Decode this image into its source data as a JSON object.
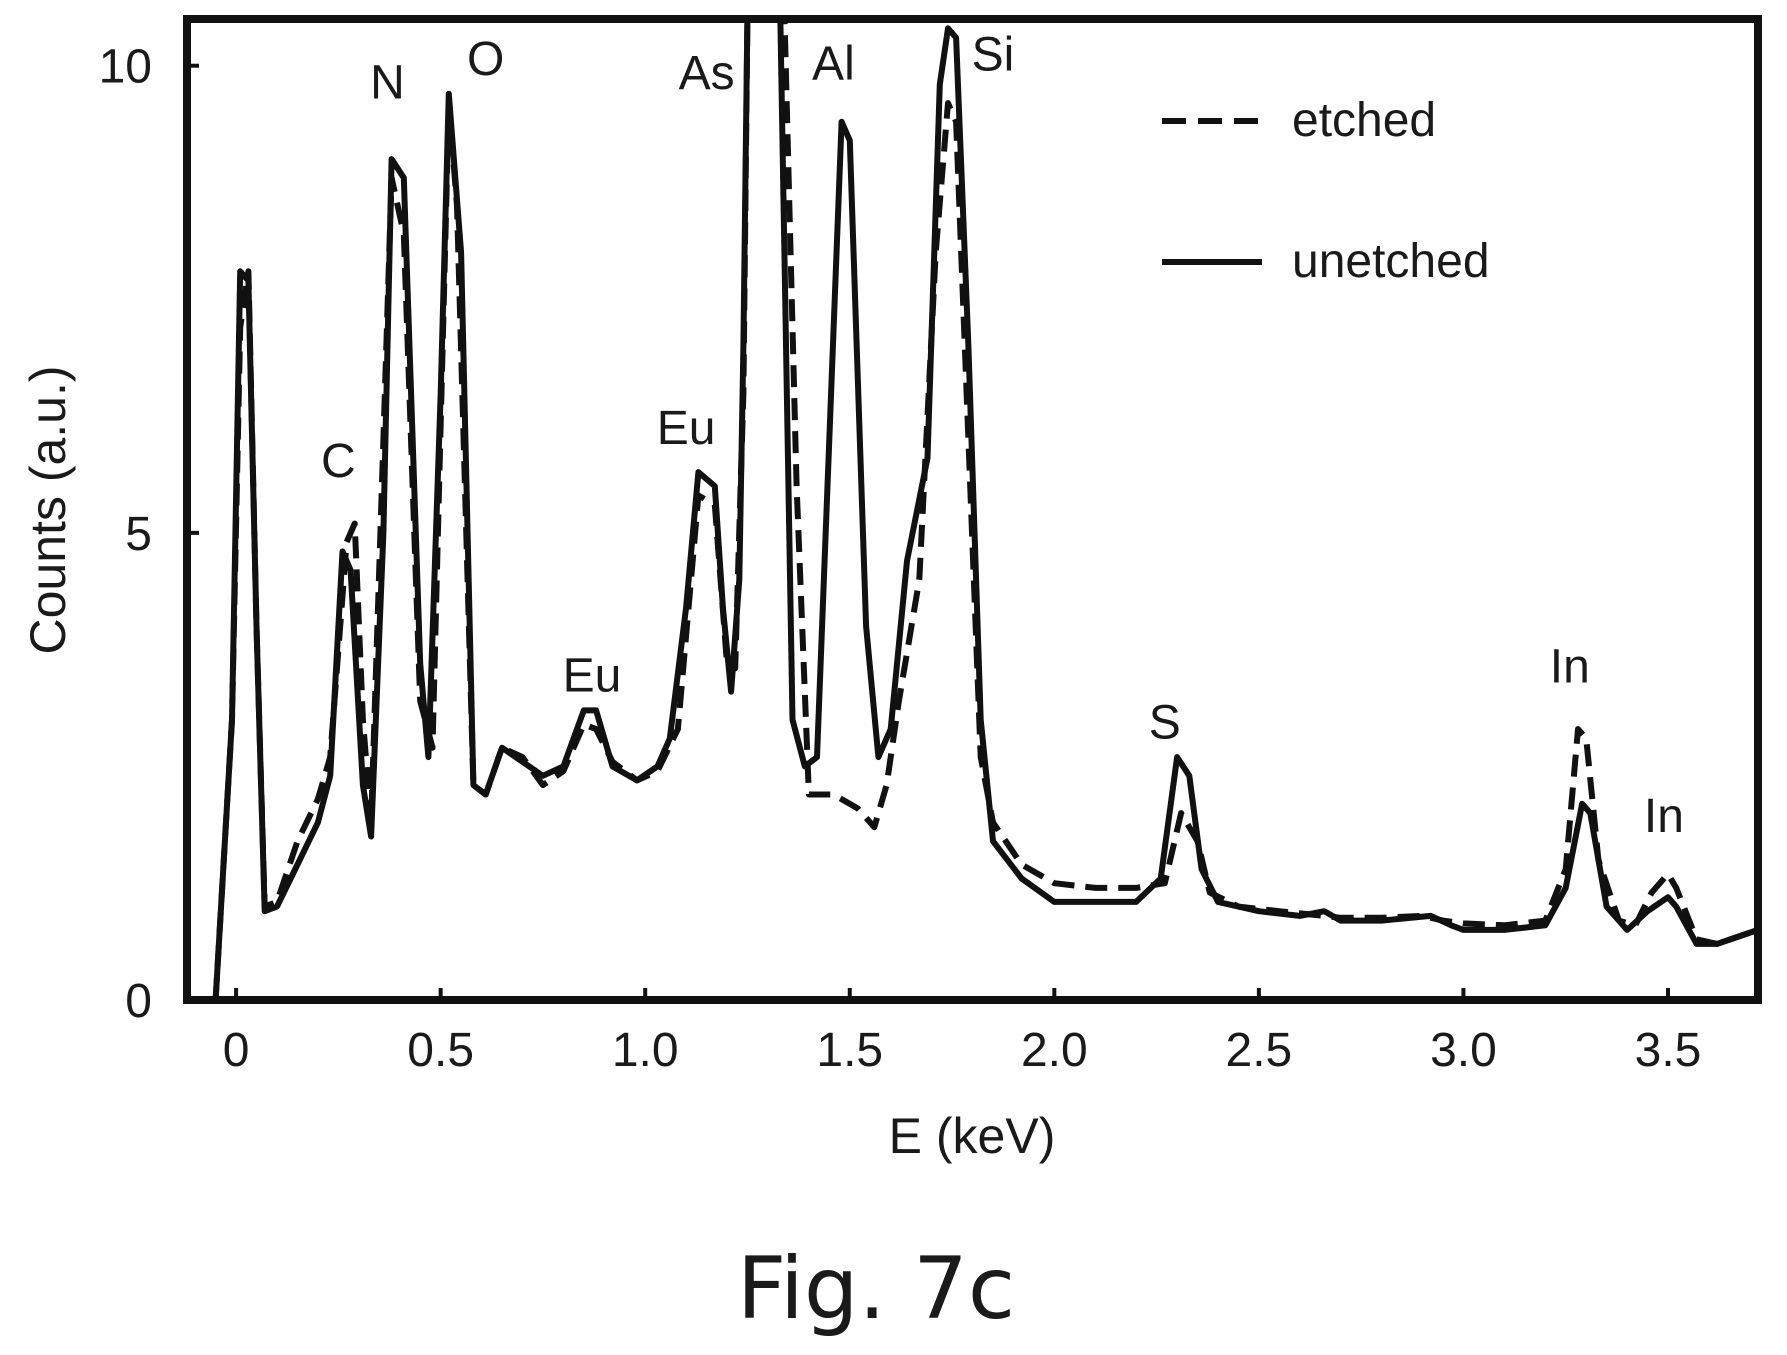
{
  "chart_data": {
    "type": "line",
    "caption": "Fig. 7c",
    "xlabel": "E (keV)",
    "ylabel": "Counts (a.u.)",
    "xlim": [
      -0.12,
      3.72
    ],
    "ylim": [
      0,
      10.5
    ],
    "x_ticks": [
      0,
      0.5,
      1.0,
      1.5,
      2.0,
      2.5,
      3.0,
      3.5
    ],
    "x_tick_labels": [
      "0",
      "0.5",
      "1.0",
      "1.5",
      "2.0",
      "2.5",
      "3.0",
      "3.5"
    ],
    "y_ticks": [
      0,
      5,
      10
    ],
    "y_tick_labels": [
      "0",
      "5",
      "10"
    ],
    "grid": false,
    "legend_position": "top-right",
    "series": [
      {
        "name": "etched",
        "style": "dashed",
        "points": [
          [
            -0.05,
            0.0
          ],
          [
            -0.01,
            3.0
          ],
          [
            0.01,
            7.2
          ],
          [
            0.03,
            7.8
          ],
          [
            0.05,
            4.0
          ],
          [
            0.07,
            1.0
          ],
          [
            0.1,
            1.05
          ],
          [
            0.15,
            1.7
          ],
          [
            0.2,
            2.15
          ],
          [
            0.23,
            2.6
          ],
          [
            0.27,
            4.9
          ],
          [
            0.29,
            5.1
          ],
          [
            0.31,
            3.0
          ],
          [
            0.33,
            1.9
          ],
          [
            0.36,
            6.0
          ],
          [
            0.38,
            8.8
          ],
          [
            0.41,
            8.2
          ],
          [
            0.45,
            3.2
          ],
          [
            0.48,
            2.7
          ],
          [
            0.52,
            9.6
          ],
          [
            0.54,
            8.5
          ],
          [
            0.58,
            2.3
          ],
          [
            0.61,
            2.2
          ],
          [
            0.65,
            2.7
          ],
          [
            0.7,
            2.6
          ],
          [
            0.75,
            2.3
          ],
          [
            0.8,
            2.45
          ],
          [
            0.85,
            2.95
          ],
          [
            0.88,
            2.9
          ],
          [
            0.92,
            2.55
          ],
          [
            0.98,
            2.35
          ],
          [
            1.03,
            2.45
          ],
          [
            1.08,
            2.9
          ],
          [
            1.13,
            5.4
          ],
          [
            1.17,
            5.3
          ],
          [
            1.2,
            3.6
          ],
          [
            1.22,
            3.55
          ],
          [
            1.24,
            6.5
          ],
          [
            1.25,
            10.6
          ],
          [
            1.34,
            10.6
          ],
          [
            1.37,
            5.5
          ],
          [
            1.4,
            2.2
          ],
          [
            1.46,
            2.2
          ],
          [
            1.52,
            2.05
          ],
          [
            1.56,
            1.85
          ],
          [
            1.59,
            2.3
          ],
          [
            1.62,
            3.2
          ],
          [
            1.67,
            4.5
          ],
          [
            1.71,
            8.0
          ],
          [
            1.74,
            9.6
          ],
          [
            1.76,
            9.4
          ],
          [
            1.79,
            6.0
          ],
          [
            1.82,
            2.6
          ],
          [
            1.85,
            1.9
          ],
          [
            1.92,
            1.45
          ],
          [
            2.0,
            1.25
          ],
          [
            2.1,
            1.2
          ],
          [
            2.2,
            1.2
          ],
          [
            2.27,
            1.25
          ],
          [
            2.31,
            2.0
          ],
          [
            2.35,
            1.7
          ],
          [
            2.38,
            1.15
          ],
          [
            2.45,
            1.0
          ],
          [
            2.55,
            0.95
          ],
          [
            2.66,
            0.9
          ],
          [
            2.7,
            0.88
          ],
          [
            2.8,
            0.88
          ],
          [
            2.9,
            0.9
          ],
          [
            2.95,
            0.85
          ],
          [
            3.0,
            0.82
          ],
          [
            3.1,
            0.8
          ],
          [
            3.2,
            0.85
          ],
          [
            3.25,
            1.4
          ],
          [
            3.28,
            2.9
          ],
          [
            3.3,
            2.8
          ],
          [
            3.33,
            1.5
          ],
          [
            3.38,
            0.85
          ],
          [
            3.42,
            0.8
          ],
          [
            3.46,
            1.15
          ],
          [
            3.5,
            1.35
          ],
          [
            3.52,
            1.2
          ],
          [
            3.57,
            0.65
          ],
          [
            3.62,
            0.6
          ],
          [
            3.72,
            0.75
          ]
        ]
      },
      {
        "name": "unetched",
        "style": "solid",
        "points": [
          [
            -0.05,
            0.0
          ],
          [
            -0.01,
            3.0
          ],
          [
            0.01,
            7.8
          ],
          [
            0.03,
            7.7
          ],
          [
            0.05,
            4.0
          ],
          [
            0.07,
            0.95
          ],
          [
            0.1,
            1.0
          ],
          [
            0.15,
            1.45
          ],
          [
            0.2,
            1.9
          ],
          [
            0.23,
            2.4
          ],
          [
            0.26,
            4.8
          ],
          [
            0.28,
            4.6
          ],
          [
            0.31,
            2.3
          ],
          [
            0.33,
            1.75
          ],
          [
            0.36,
            5.0
          ],
          [
            0.38,
            9.0
          ],
          [
            0.41,
            8.8
          ],
          [
            0.45,
            3.6
          ],
          [
            0.47,
            2.6
          ],
          [
            0.5,
            6.5
          ],
          [
            0.52,
            9.7
          ],
          [
            0.55,
            8.0
          ],
          [
            0.58,
            2.3
          ],
          [
            0.61,
            2.2
          ],
          [
            0.65,
            2.7
          ],
          [
            0.7,
            2.55
          ],
          [
            0.75,
            2.4
          ],
          [
            0.8,
            2.5
          ],
          [
            0.85,
            3.1
          ],
          [
            0.88,
            3.1
          ],
          [
            0.92,
            2.5
          ],
          [
            0.98,
            2.35
          ],
          [
            1.03,
            2.5
          ],
          [
            1.06,
            2.8
          ],
          [
            1.1,
            4.2
          ],
          [
            1.13,
            5.65
          ],
          [
            1.17,
            5.5
          ],
          [
            1.19,
            4.2
          ],
          [
            1.21,
            3.3
          ],
          [
            1.23,
            4.5
          ],
          [
            1.24,
            7.0
          ],
          [
            1.25,
            10.6
          ],
          [
            1.33,
            10.6
          ],
          [
            1.36,
            3.0
          ],
          [
            1.39,
            2.5
          ],
          [
            1.42,
            2.6
          ],
          [
            1.45,
            6.0
          ],
          [
            1.48,
            9.4
          ],
          [
            1.5,
            9.2
          ],
          [
            1.54,
            4.0
          ],
          [
            1.57,
            2.6
          ],
          [
            1.6,
            2.9
          ],
          [
            1.64,
            4.7
          ],
          [
            1.69,
            5.8
          ],
          [
            1.72,
            9.8
          ],
          [
            1.74,
            10.4
          ],
          [
            1.76,
            10.3
          ],
          [
            1.79,
            7.0
          ],
          [
            1.82,
            3.0
          ],
          [
            1.85,
            1.7
          ],
          [
            1.92,
            1.3
          ],
          [
            2.0,
            1.05
          ],
          [
            2.1,
            1.05
          ],
          [
            2.2,
            1.05
          ],
          [
            2.26,
            1.3
          ],
          [
            2.3,
            2.6
          ],
          [
            2.33,
            2.4
          ],
          [
            2.36,
            1.4
          ],
          [
            2.4,
            1.05
          ],
          [
            2.5,
            0.95
          ],
          [
            2.6,
            0.9
          ],
          [
            2.66,
            0.95
          ],
          [
            2.7,
            0.85
          ],
          [
            2.8,
            0.85
          ],
          [
            2.92,
            0.9
          ],
          [
            2.97,
            0.8
          ],
          [
            3.0,
            0.75
          ],
          [
            3.1,
            0.75
          ],
          [
            3.2,
            0.8
          ],
          [
            3.25,
            1.2
          ],
          [
            3.29,
            2.1
          ],
          [
            3.31,
            2.0
          ],
          [
            3.35,
            1.0
          ],
          [
            3.4,
            0.75
          ],
          [
            3.45,
            0.95
          ],
          [
            3.5,
            1.1
          ],
          [
            3.52,
            1.0
          ],
          [
            3.57,
            0.6
          ],
          [
            3.62,
            0.6
          ],
          [
            3.72,
            0.75
          ]
        ]
      }
    ],
    "peak_labels": [
      {
        "text": "C",
        "x": 0.25,
        "y": 5.6
      },
      {
        "text": "N",
        "x": 0.37,
        "y": 9.65
      },
      {
        "text": "O",
        "x": 0.61,
        "y": 9.9
      },
      {
        "text": "As",
        "x": 1.15,
        "y": 9.75
      },
      {
        "text": "Al",
        "x": 1.46,
        "y": 9.85
      },
      {
        "text": "Si",
        "x": 1.85,
        "y": 9.95
      },
      {
        "text": "Eu",
        "x": 0.87,
        "y": 3.3
      },
      {
        "text": "Eu",
        "x": 1.1,
        "y": 5.95
      },
      {
        "text": "S",
        "x": 2.27,
        "y": 2.8
      },
      {
        "text": "In",
        "x": 3.26,
        "y": 3.4
      },
      {
        "text": "In",
        "x": 3.49,
        "y": 1.8
      }
    ]
  }
}
